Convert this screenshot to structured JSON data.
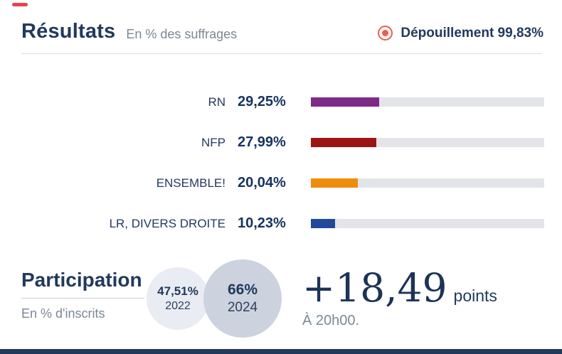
{
  "brand": {
    "top_dash_color": "#e8414d",
    "bottom_bar_color": "#22395b"
  },
  "header": {
    "title": "Résultats",
    "subtitle": "En % des suffrages",
    "live_label": "Dépouillement 99,83%",
    "live_icon_color": "#f25c4d"
  },
  "results": {
    "track_color": "#e3e5e9",
    "scale_max": 100,
    "rows": [
      {
        "label": "RN",
        "value": "29,25%",
        "pct": 29.25,
        "color": "#7f2a87"
      },
      {
        "label": "NFP",
        "value": "27,99%",
        "pct": 27.99,
        "color": "#9c1514"
      },
      {
        "label": "ENSEMBLE!",
        "value": "20,04%",
        "pct": 20.04,
        "color": "#ef8b0d"
      },
      {
        "label": "LR, DIVERS DROITE",
        "value": "10,23%",
        "pct": 10.23,
        "color": "#21489a"
      }
    ]
  },
  "participation": {
    "title": "Participation",
    "subtitle": "En % d'inscrits",
    "bubbles": [
      {
        "value": "47,51%",
        "year": "2022",
        "color": "#e9ecf2"
      },
      {
        "value": "66%",
        "year": "2024",
        "color": "#ccd3df"
      }
    ],
    "delta_value": "+18,49",
    "delta_unit": "points",
    "time_note": "À 20h00."
  },
  "chart_data": [
    {
      "type": "bar",
      "orientation": "horizontal",
      "title": "Résultats",
      "subtitle": "En % des suffrages",
      "annotation": "Dépouillement 99,83%",
      "categories": [
        "RN",
        "NFP",
        "ENSEMBLE!",
        "LR, DIVERS DROITE"
      ],
      "values": [
        29.25,
        27.99,
        20.04,
        10.23
      ],
      "value_labels": [
        "29,25%",
        "27,99%",
        "20,04%",
        "10,23%"
      ],
      "bar_colors": [
        "#7f2a87",
        "#9c1514",
        "#ef8b0d",
        "#21489a"
      ],
      "xlim": [
        0,
        100
      ],
      "grid": false,
      "legend": false
    },
    {
      "type": "bar",
      "title": "Participation",
      "subtitle": "En % d'inscrits",
      "categories": [
        "2022",
        "2024"
      ],
      "values": [
        47.51,
        66
      ],
      "value_labels": [
        "47,51%",
        "66%"
      ],
      "annotation": "+18,49 points À 20h00."
    }
  ]
}
